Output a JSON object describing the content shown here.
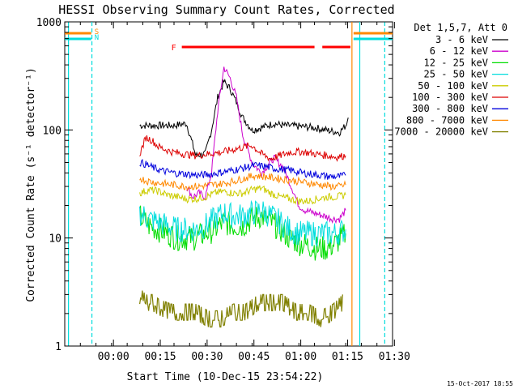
{
  "chart_data": {
    "type": "line",
    "title": "HESSI Observing Summary Count Rates, Corrected",
    "xlabel": "Start Time (10-Dec-15 23:54:22)",
    "ylabel": "Corrected Count Rate (s⁻¹ detector⁻¹)",
    "yscale": "log",
    "ylim": [
      1,
      1000
    ],
    "xlim_minutes": [
      -10,
      95
    ],
    "x_tick_labels": [
      "00:00",
      "00:15",
      "00:30",
      "00:45",
      "01:00",
      "01:15",
      "01:30"
    ],
    "x_ticks_minutes": [
      5.6,
      20.6,
      35.6,
      50.6,
      65.6,
      80.6,
      95.6
    ],
    "y_tick_labels": [
      "1",
      "10",
      "100",
      "1000"
    ],
    "y_ticks": [
      1,
      10,
      100,
      1000
    ],
    "grid": false,
    "legend_header": "Det 1,5,7, Att 0",
    "legend_position": "right",
    "series": [
      {
        "name": "3 - 6 keV",
        "color": "#000000",
        "x": [
          14,
          20,
          25,
          29,
          32,
          35,
          37,
          39,
          41,
          43,
          45,
          47,
          50,
          53,
          57,
          60,
          65,
          70,
          75,
          78,
          80,
          80.8
        ],
        "y": [
          110,
          110,
          110,
          115,
          58,
          60,
          100,
          200,
          280,
          240,
          180,
          130,
          100,
          105,
          115,
          110,
          108,
          105,
          98,
          95,
          110,
          130
        ]
      },
      {
        "name": "6 - 12 keV",
        "color": "#cc00cc",
        "x": [
          29,
          31,
          33,
          35,
          37,
          39,
          41,
          43,
          45,
          47,
          50,
          53,
          57,
          60,
          63,
          65,
          67,
          70,
          73,
          76,
          78,
          80
        ],
        "y": [
          30,
          24,
          26,
          24,
          40,
          150,
          380,
          300,
          200,
          90,
          50,
          40,
          55,
          45,
          28,
          20,
          18,
          17,
          16,
          15,
          15,
          18
        ]
      },
      {
        "name": "12 - 25 keV",
        "color": "#00dd00",
        "x": [
          14,
          17,
          20,
          23,
          26,
          29,
          32,
          35,
          38,
          41,
          44,
          47,
          50,
          53,
          56,
          59,
          62,
          65,
          68,
          71,
          74,
          77,
          80
        ],
        "y": [
          16,
          13,
          12,
          11,
          10,
          10,
          10,
          11,
          12,
          14,
          13,
          13,
          15,
          16,
          14,
          12,
          10,
          9,
          8.5,
          8,
          8,
          9,
          11
        ]
      },
      {
        "name": "25 - 50 keV",
        "color": "#00dddd",
        "x": [
          14,
          17,
          20,
          23,
          26,
          29,
          32,
          35,
          38,
          41,
          44,
          47,
          50,
          53,
          56,
          59,
          62,
          65,
          68,
          71,
          74,
          77,
          80
        ],
        "y": [
          17,
          15,
          14,
          13,
          12,
          12,
          12,
          13,
          15,
          17,
          16,
          16,
          17,
          18,
          16,
          14,
          12,
          11,
          11,
          11,
          11,
          11,
          12
        ]
      },
      {
        "name": "50 - 100 keV",
        "color": "#cccc00",
        "x": [
          14,
          17,
          20,
          23,
          26,
          29,
          32,
          35,
          38,
          41,
          44,
          47,
          50,
          53,
          56,
          59,
          62,
          65,
          68,
          71,
          74,
          77,
          80
        ],
        "y": [
          26,
          28,
          27,
          25,
          24,
          23,
          23,
          24,
          26,
          27,
          26,
          26,
          28,
          29,
          26,
          24,
          23,
          22,
          22,
          23,
          24,
          24,
          25
        ]
      },
      {
        "name": "100 - 300 keV",
        "color": "#dd0000",
        "x": [
          14,
          16,
          18,
          20,
          24,
          28,
          32,
          36,
          40,
          44,
          48,
          50,
          53,
          56,
          59,
          62,
          66,
          70,
          74,
          77,
          80
        ],
        "y": [
          60,
          85,
          80,
          70,
          63,
          60,
          58,
          60,
          62,
          66,
          70,
          72,
          60,
          54,
          58,
          62,
          63,
          60,
          58,
          56,
          58
        ]
      },
      {
        "name": "300 - 800 keV",
        "color": "#0000dd",
        "x": [
          14,
          16,
          18,
          21,
          25,
          29,
          33,
          37,
          41,
          45,
          48,
          51,
          54,
          57,
          60,
          63,
          66,
          69,
          72,
          75,
          78,
          80
        ],
        "y": [
          50,
          48,
          45,
          42,
          40,
          39,
          38,
          39,
          41,
          43,
          45,
          47,
          46,
          44,
          43,
          42,
          40,
          39,
          38,
          37,
          37,
          38
        ]
      },
      {
        "name": "800 - 7000 keV",
        "color": "#ff8800",
        "x": [
          14,
          16,
          18,
          21,
          25,
          29,
          33,
          37,
          41,
          45,
          48,
          51,
          54,
          57,
          60,
          63,
          66,
          69,
          72,
          75,
          78,
          80
        ],
        "y": [
          36,
          34,
          33,
          32,
          31,
          30,
          30,
          31,
          32,
          34,
          36,
          38,
          37,
          36,
          35,
          34,
          33,
          32,
          31,
          30,
          30,
          31
        ]
      },
      {
        "name": "7000 - 20000 keV",
        "color": "#808000",
        "x": [
          14,
          16,
          18,
          20,
          24,
          28,
          32,
          36,
          40,
          44,
          48,
          52,
          56,
          60,
          64,
          68,
          72,
          76,
          79
        ],
        "y": [
          4,
          3,
          3,
          2.5,
          2,
          2,
          2,
          1.5,
          1.5,
          2,
          2,
          3,
          3,
          3,
          2,
          2,
          1.5,
          2,
          3
        ]
      }
    ],
    "flare_bar": {
      "label": "F",
      "color": "#ff0000",
      "segments": [
        [
          27.5,
          70
        ],
        [
          72.5,
          81.5
        ]
      ]
    },
    "saa_markers": [
      {
        "label": "S",
        "color": "#ff8800",
        "segments": [
          [
            -10,
            -1.5
          ],
          [
            82.5,
            95
          ]
        ]
      },
      {
        "label": "N",
        "color": "#00dddd",
        "segments": [
          [
            -10,
            -1.5
          ],
          [
            82.5,
            95
          ]
        ]
      }
    ],
    "vertical_lines": [
      {
        "x": 82.0,
        "color": "#ff8800",
        "style": "solid"
      },
      {
        "x": 84.5,
        "color": "#00dddd",
        "style": "solid"
      },
      {
        "x": -8.8,
        "color": "#00dddd",
        "style": "solid"
      },
      {
        "x": -1.3,
        "color": "#00dddd",
        "style": "dash"
      },
      {
        "x": 92.5,
        "color": "#00dddd",
        "style": "dash"
      }
    ]
  },
  "footer_timestamp": "15-Oct-2017 18:55"
}
